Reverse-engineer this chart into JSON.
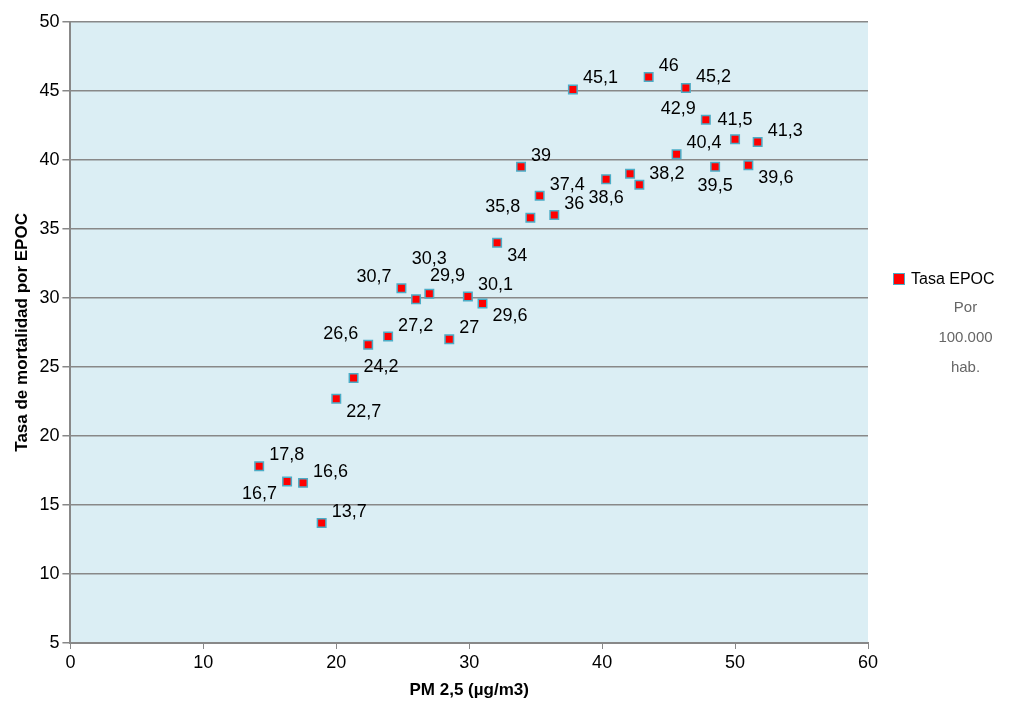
{
  "chart_data": {
    "type": "scatter",
    "xlabel": "PM 2,5 (µg/m3)",
    "ylabel": "Tasa de mortalidad por EPOC",
    "xlim": [
      0,
      60
    ],
    "xticks": [
      0,
      10,
      20,
      30,
      40,
      50,
      60
    ],
    "ylim": [
      5,
      50
    ],
    "yticks": [
      5,
      10,
      15,
      20,
      25,
      30,
      35,
      40,
      45,
      50
    ],
    "grid": "y",
    "legend": "right",
    "marker": "square",
    "annotations": [
      "Por 100.000 hab."
    ],
    "series": [
      {
        "name": "Tasa EPOC",
        "color": "#ff0000",
        "x": [
          14.2,
          16.3,
          17.5,
          18.9,
          20.0,
          21.3,
          22.4,
          23.9,
          28.5,
          24.9,
          26.0,
          27.0,
          29.9,
          31.0,
          32.1,
          34.6,
          36.4,
          35.3,
          33.9,
          40.3,
          42.1,
          42.8,
          45.6,
          48.5,
          51.0,
          50.0,
          51.7,
          47.8,
          37.8,
          43.5,
          46.3
        ],
        "values": [
          17.8,
          16.7,
          16.6,
          13.7,
          22.7,
          24.2,
          26.6,
          27.2,
          27,
          30.7,
          29.9,
          30.3,
          30.1,
          29.6,
          34,
          35.8,
          36,
          37.4,
          39.5,
          38.6,
          39.0,
          38.2,
          40.4,
          39.5,
          39.6,
          41.5,
          41.3,
          42.9,
          45.1,
          46,
          45.2
        ],
        "value_labels": [
          "17,8",
          "16,7",
          "16,6",
          "13,7",
          "22,7",
          "24,2",
          "26,6",
          "27,2",
          "27",
          "30,7",
          "29,9",
          "30,3",
          "30,1",
          "29,6",
          "34",
          "35,8",
          "36",
          "37,4",
          "39",
          "38,6",
          null,
          "38,2",
          "40,4",
          "39,5",
          "39,6",
          "41,5",
          "41,3",
          "42,9",
          "45,1",
          "46",
          "45,2"
        ]
      }
    ]
  }
}
